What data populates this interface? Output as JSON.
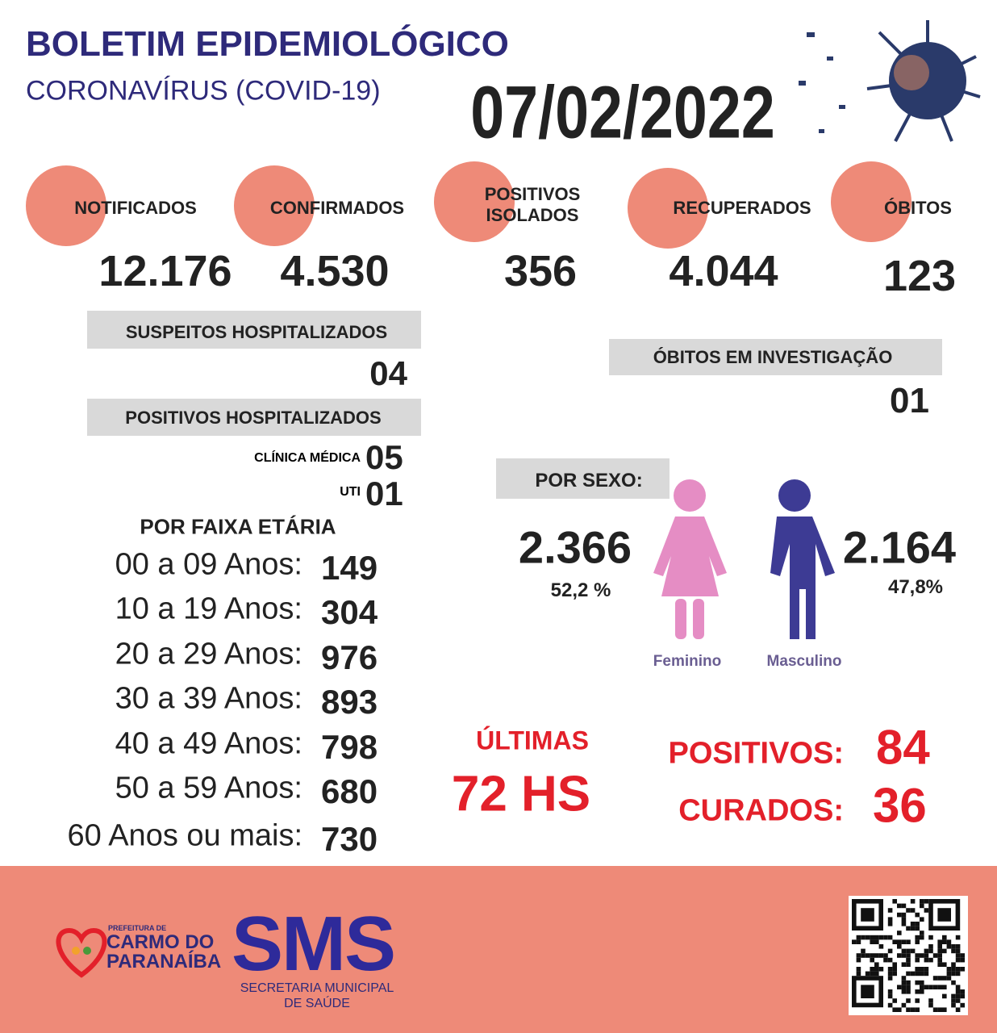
{
  "header": {
    "title": "BOLETIM EPIDEMIOLÓGICO",
    "subtitle": "CORONAVÍRUS (COVID-19)",
    "date": "07/02/2022"
  },
  "indicators": [
    {
      "label": "NOTIFICADOS",
      "value": "12.176"
    },
    {
      "label": "CONFIRMADOS",
      "value": "4.530"
    },
    {
      "label": "POSITIVOS ISOLADOS",
      "value": "356"
    },
    {
      "label": "RECUPERADOS",
      "value": "4.044"
    },
    {
      "label": "ÓBITOS",
      "value": "123"
    }
  ],
  "suspects_hospitalized": {
    "label": "SUSPEITOS HOSPITALIZADOS",
    "value": "04"
  },
  "positives_hospitalized": {
    "label": "POSITIVOS HOSPITALIZADOS",
    "items": [
      {
        "label": "CLÍNICA MÉDICA",
        "value": "05"
      },
      {
        "label": "UTI",
        "value": "01"
      }
    ]
  },
  "deaths_investigation": {
    "label": "ÓBITOS EM INVESTIGAÇÃO",
    "value": "01"
  },
  "age_groups": {
    "title": "POR FAIXA ETÁRIA",
    "rows": [
      {
        "label": "00 a 09 Anos:",
        "value": "149"
      },
      {
        "label": "10 a 19 Anos:",
        "value": "304"
      },
      {
        "label": "20 a 29 Anos:",
        "value": "976"
      },
      {
        "label": "30 a 39 Anos:",
        "value": "893"
      },
      {
        "label": "40 a 49 Anos:",
        "value": "798"
      },
      {
        "label": "50 a 59 Anos:",
        "value": "680"
      },
      {
        "label": "60 Anos ou mais:",
        "value": "730"
      }
    ]
  },
  "by_sex": {
    "title": "POR SEXO:",
    "female": {
      "label": "Feminino",
      "value": "2.366",
      "percent": "52,2 %"
    },
    "male": {
      "label": "Masculino",
      "value": "2.164",
      "percent": "47,8%"
    }
  },
  "last_72h": {
    "title": "ÚLTIMAS",
    "period": "72 HS",
    "positives": {
      "label": "POSITIVOS:",
      "value": "84"
    },
    "cured": {
      "label": "CURADOS:",
      "value": "36"
    }
  },
  "footer": {
    "prefeitura": "PREFEITURA DE",
    "city_line1": "CARMO DO",
    "city_line2": "PARANAÍBA",
    "sms": "SMS",
    "secretaria_line1": "SECRETARIA MUNICIPAL",
    "secretaria_line2": "DE SAÚDE"
  }
}
